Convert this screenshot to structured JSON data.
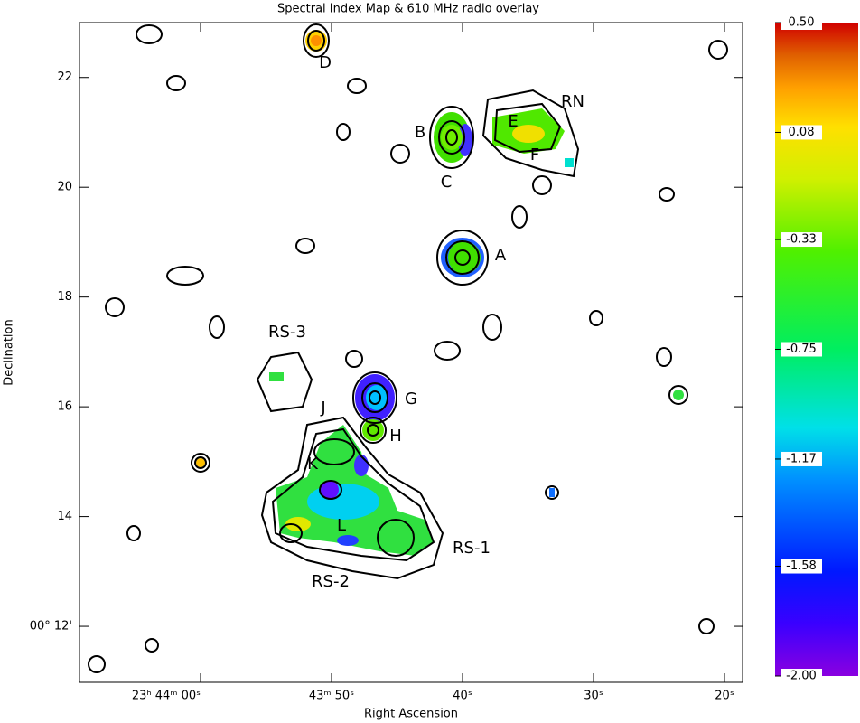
{
  "chart_data": {
    "type": "image",
    "title": "Spectral Index Map & 610 MHz radio overlay",
    "x_label": "Right Ascension",
    "y_label": "Declination",
    "xlim": [
      69.24,
      18.62
    ],
    "xticks": [
      {
        "value": 60,
        "label": "23ʰ 44ᵐ 00ˢ"
      },
      {
        "value": 50,
        "label": "43ᵐ 50ˢ"
      },
      {
        "value": 40,
        "label": "40ˢ"
      },
      {
        "value": 30,
        "label": "30ˢ"
      },
      {
        "value": 20,
        "label": "20ˢ"
      }
    ],
    "ylim": [
      10.98,
      23.0
    ],
    "yticks": [
      {
        "value": 12,
        "label": "00° 12'"
      },
      14,
      16,
      18,
      20,
      22
    ],
    "clim": [
      -2,
      0.5
    ],
    "cticks": [
      {
        "value": -2,
        "label": "-2.00"
      },
      -1.58,
      -1.17,
      -0.75,
      -0.33,
      0.08,
      {
        "value": 0.5,
        "label": "0.50"
      }
    ],
    "annotations": [
      "A",
      "B",
      "C",
      "D",
      "E",
      "F",
      "G",
      "H",
      "J",
      "K",
      "L",
      "RN",
      "RS-1",
      "RS-2",
      "RS-3"
    ]
  }
}
